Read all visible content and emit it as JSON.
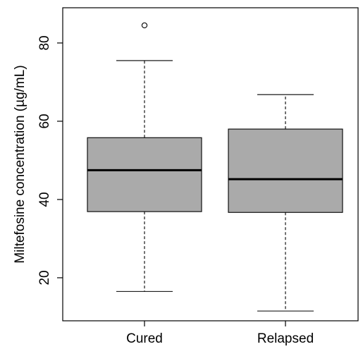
{
  "chart_data": {
    "type": "boxplot",
    "title": "",
    "xlabel": "",
    "ylabel": "Miltefosine concentration (µg/mL)",
    "ylim": [
      9,
      89
    ],
    "yticks": [
      20,
      40,
      60,
      80
    ],
    "grid": false,
    "legend": "none",
    "box_fill": "#aaaaaa",
    "categories": [
      "Cured",
      "Relapsed"
    ],
    "boxes": [
      {
        "category": "Cured",
        "whisker_low": 16.5,
        "q1": 36.9,
        "median": 47.5,
        "q3": 55.8,
        "whisker_high": 75.5,
        "outliers": [
          84.5
        ]
      },
      {
        "category": "Relapsed",
        "whisker_low": 11.5,
        "q1": 36.7,
        "median": 45.2,
        "q3": 58.0,
        "whisker_high": 66.8,
        "outliers": []
      }
    ]
  }
}
